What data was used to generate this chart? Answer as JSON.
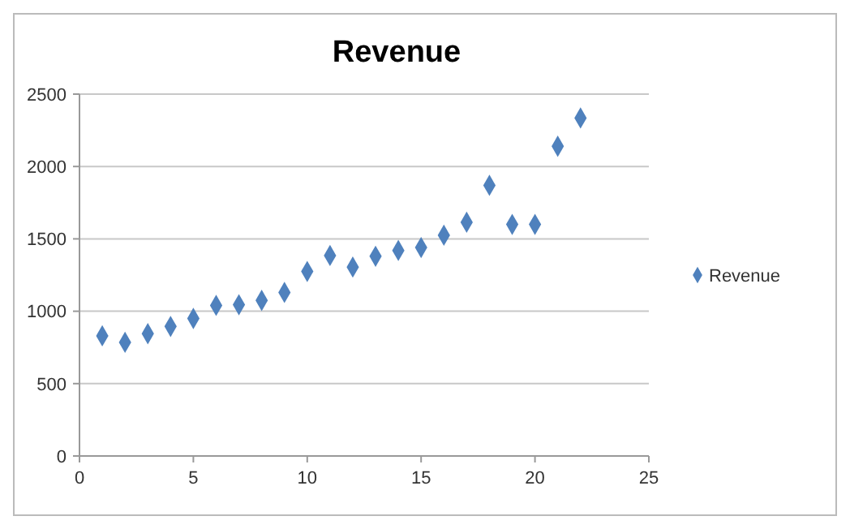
{
  "chart_data": {
    "type": "scatter",
    "title": "Revenue",
    "x": [
      1,
      2,
      3,
      4,
      5,
      6,
      7,
      8,
      9,
      10,
      11,
      12,
      13,
      14,
      15,
      16,
      17,
      18,
      19,
      20,
      21,
      22
    ],
    "series": [
      {
        "name": "Revenue",
        "color": "#4f81bd",
        "values": [
          830,
          785,
          845,
          895,
          950,
          1040,
          1045,
          1075,
          1130,
          1275,
          1385,
          1305,
          1380,
          1420,
          1440,
          1525,
          1615,
          1870,
          1600,
          1600,
          2140,
          2335
        ]
      }
    ],
    "xlim": [
      0,
      25
    ],
    "xticks": [
      0,
      5,
      10,
      15,
      20,
      25
    ],
    "ylim": [
      0,
      2500
    ],
    "yticks": [
      0,
      500,
      1000,
      1500,
      2000,
      2500
    ],
    "grid": "y",
    "legend": "right",
    "marker": "diamond"
  }
}
